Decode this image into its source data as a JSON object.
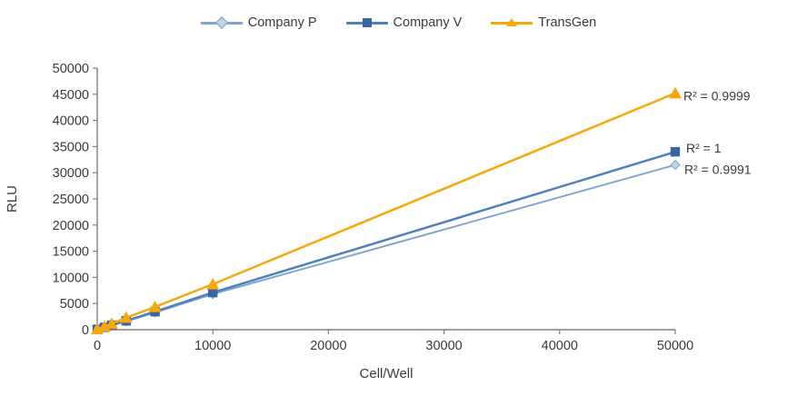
{
  "chart_data": {
    "type": "line",
    "title": "",
    "xlabel": "Cell/Well",
    "ylabel": "RLU",
    "xlim": [
      0,
      50000
    ],
    "ylim": [
      0,
      50000
    ],
    "x_ticks": [
      0,
      10000,
      20000,
      30000,
      40000,
      50000
    ],
    "y_ticks": [
      0,
      5000,
      10000,
      15000,
      20000,
      25000,
      30000,
      35000,
      40000,
      45000,
      50000
    ],
    "grid": false,
    "legend_position": "top-center",
    "axis_color": "#7f7f7f",
    "tick_label_color": "#3a3a3a",
    "annotation_color": "#3a3a3a",
    "x": [
      0,
      625,
      1250,
      2500,
      5000,
      10000,
      50000
    ],
    "series": [
      {
        "name": "Company P",
        "marker": "diamond",
        "line_color": "#7ea6d0",
        "marker_color": "#bcd6e2",
        "values": [
          70,
          420,
          820,
          1600,
          3300,
          6800,
          31500
        ],
        "r2": "R² = 0.9991"
      },
      {
        "name": "Company V",
        "marker": "square",
        "line_color": "#4e81bd",
        "marker_color": "#38679e",
        "values": [
          80,
          450,
          870,
          1700,
          3450,
          7100,
          34000
        ],
        "r2": "R² = 1"
      },
      {
        "name": "TransGen",
        "marker": "triangle",
        "line_color": "#f5a70b",
        "marker_color": "#f5a70b",
        "values": [
          100,
          600,
          1150,
          2300,
          4350,
          8700,
          45200
        ],
        "r2": "R² = 0.9999"
      }
    ]
  }
}
